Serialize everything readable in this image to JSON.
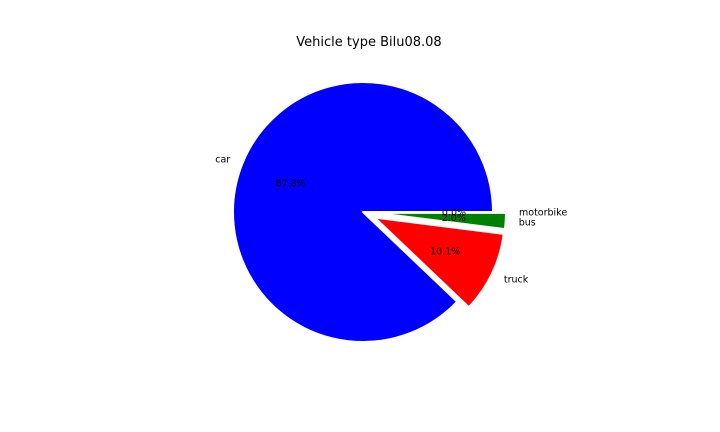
{
  "chart_data": {
    "type": "pie",
    "title": "Vehicle type Bilu08.08",
    "slices": [
      {
        "label": "car",
        "value": 87.8,
        "pct_label": "87.8%",
        "color": "#0000ff",
        "explode": 0
      },
      {
        "label": "truck",
        "value": 10.1,
        "pct_label": "10.1%",
        "color": "#ff0000",
        "explode": 0.1
      },
      {
        "label": "bus",
        "value": 2.0,
        "pct_label": "2.0%",
        "color": "#008000",
        "explode": 0.1
      },
      {
        "label": "motorbike",
        "value": 0.0,
        "pct_label": "0.0%",
        "color": "#000000",
        "explode": 0.1
      }
    ]
  }
}
